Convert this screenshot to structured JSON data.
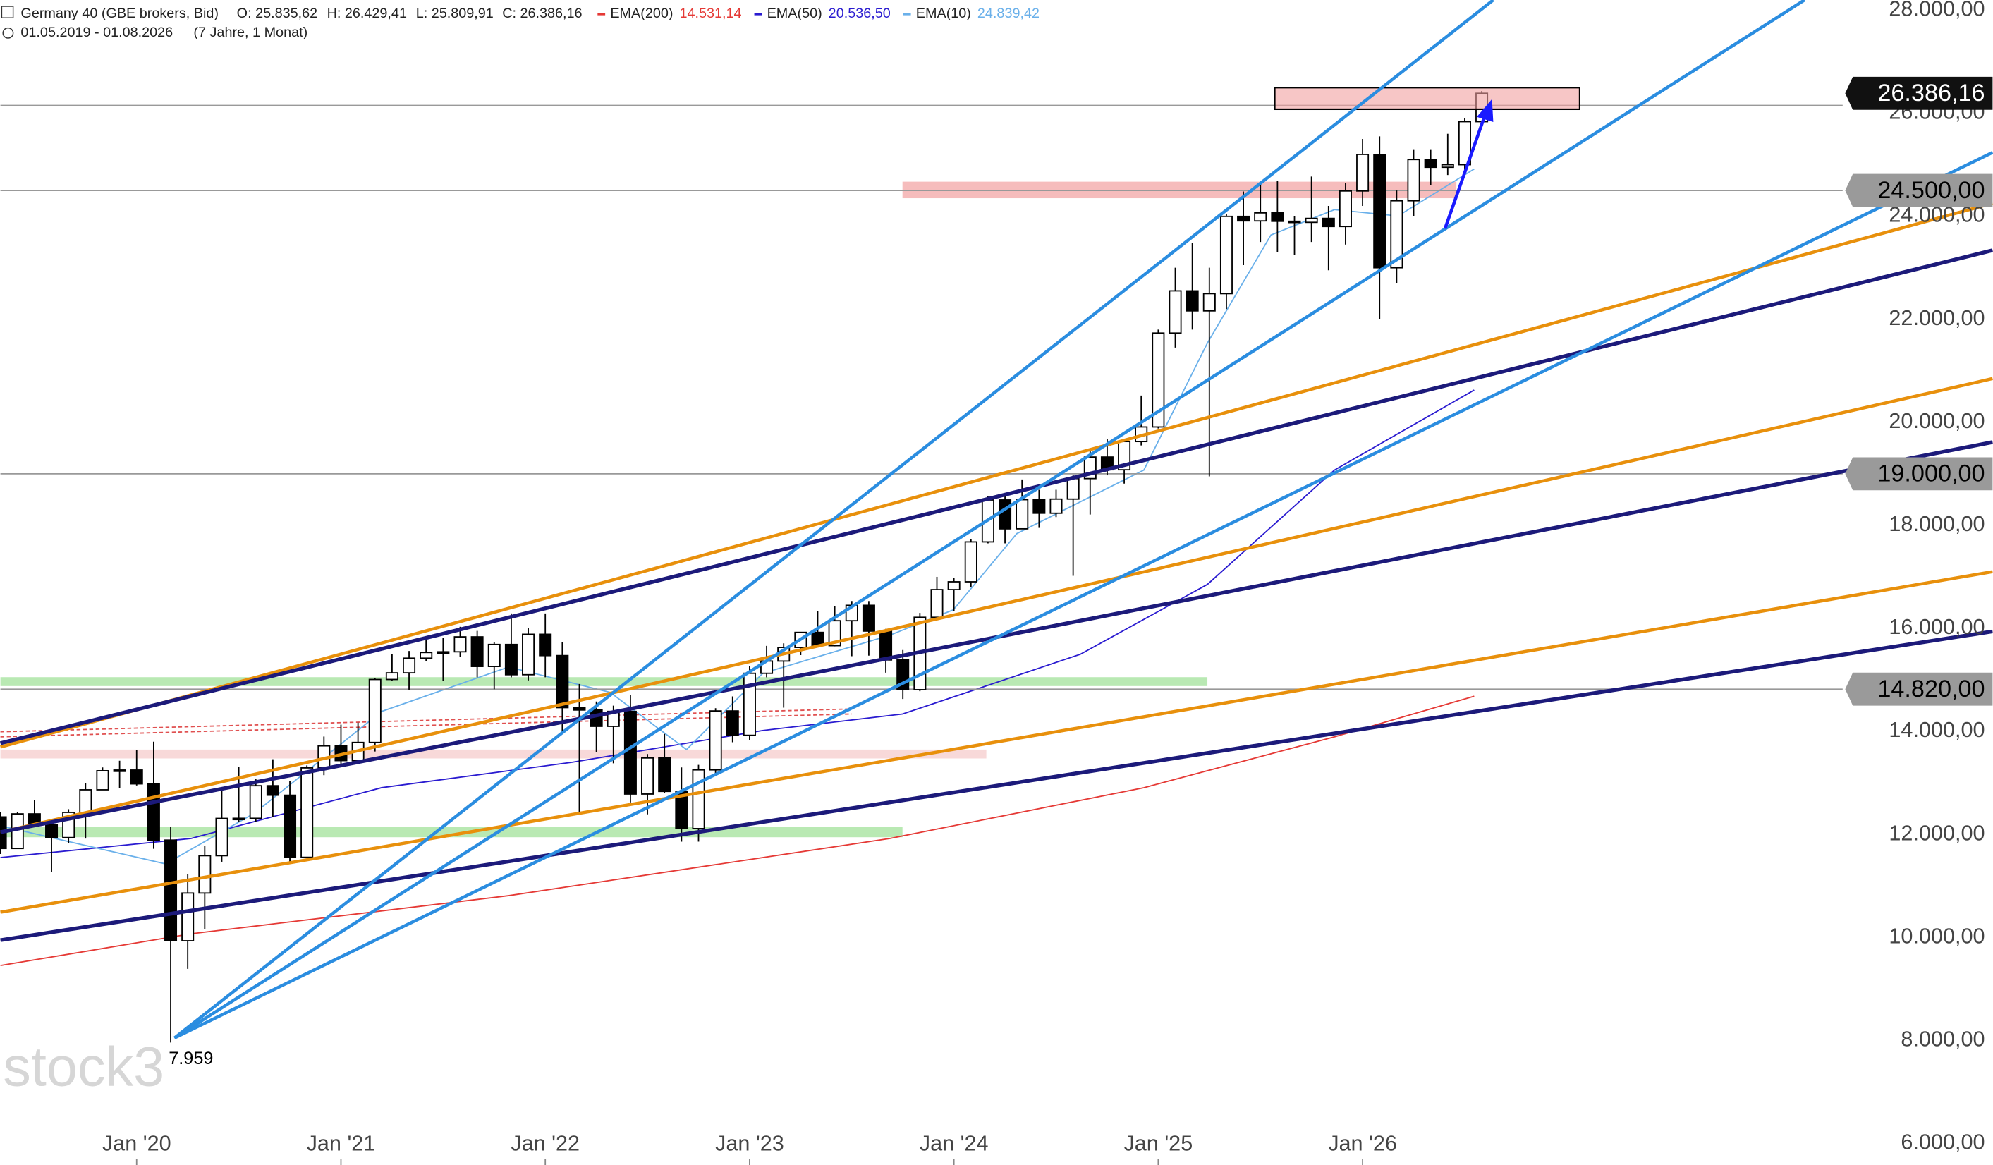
{
  "chart_data": {
    "type": "candlestick",
    "title": "Germany 40 (GBE brokers, Bid)",
    "info": {
      "open": "O: 25.835,62",
      "high": "H: 26.429,41",
      "low": "L: 25.809,91",
      "close": "C: 26.386,16"
    },
    "indicators": [
      {
        "name": "EMA(200)",
        "value_label": "14.531,14",
        "color": "#e53935"
      },
      {
        "name": "EMA(50)",
        "value_label": "20.536,50",
        "color": "#2a1bd0"
      },
      {
        "name": "EMA(10)",
        "value_label": "24.839,42",
        "color": "#6ab0ea"
      }
    ],
    "range_text": "01.05.2019 - 01.08.2026",
    "range_note": "(7 Jahre, 1 Monat)",
    "watermark": "stock3",
    "annotations": [
      {
        "text": "7.959"
      }
    ],
    "x": [
      "2019-05",
      "2019-06",
      "2019-07",
      "2019-08",
      "2019-09",
      "2019-10",
      "2019-11",
      "2019-12",
      "2020-01",
      "2020-02",
      "2020-03",
      "2020-04",
      "2020-05",
      "2020-06",
      "2020-07",
      "2020-08",
      "2020-09",
      "2020-10",
      "2020-11",
      "2020-12",
      "2021-01",
      "2021-02",
      "2021-03",
      "2021-04",
      "2021-05",
      "2021-06",
      "2021-07",
      "2021-08",
      "2021-09",
      "2021-10",
      "2021-11",
      "2021-12",
      "2022-01",
      "2022-02",
      "2022-03",
      "2022-04",
      "2022-05",
      "2022-06",
      "2022-07",
      "2022-08",
      "2022-09",
      "2022-10",
      "2022-11",
      "2022-12",
      "2023-01",
      "2023-02",
      "2023-03",
      "2023-04",
      "2023-05",
      "2023-06",
      "2023-07",
      "2023-08",
      "2023-09",
      "2023-10",
      "2023-11",
      "2023-12",
      "2024-01",
      "2024-02",
      "2024-03",
      "2024-04",
      "2024-05",
      "2024-06",
      "2024-07",
      "2024-08",
      "2024-09",
      "2024-10",
      "2024-11",
      "2024-12",
      "2025-01",
      "2025-02",
      "2025-03",
      "2025-04",
      "2025-05",
      "2025-06",
      "2025-07",
      "2025-08",
      "2025-09",
      "2025-10",
      "2025-11",
      "2025-12",
      "2026-01",
      "2026-02",
      "2026-03",
      "2026-04",
      "2026-05",
      "2026-06",
      "2026-07",
      "2026-08"
    ],
    "open": [
      12340,
      11727,
      12399,
      12189,
      11939,
      12428,
      12866,
      13236,
      13249,
      12981,
      11890,
      9936,
      10862,
      11587,
      12311,
      12313,
      12945,
      12761,
      11556,
      13291,
      13719,
      13433,
      13786,
      15008,
      15136,
      15421,
      15531,
      15544,
      15835,
      15260,
      15688,
      15100,
      15885,
      15471,
      14461,
      14415,
      14098,
      14388,
      12784,
      13484,
      12835,
      12114,
      13253,
      14397,
      13924,
      15128,
      15365,
      15629,
      15922,
      15664,
      16148,
      16447,
      15947,
      15387,
      14810,
      16215,
      16752,
      16904,
      17678,
      18492,
      17932,
      18498,
      18235,
      18509,
      18907,
      19325,
      19078,
      19626,
      19909,
      21732,
      22551,
      22163,
      22497,
      23997,
      23909,
      24065,
      23902,
      23881,
      23958,
      23800,
      24490,
      25200,
      23000,
      24300,
      25100,
      24950,
      25000,
      25835.62
    ],
    "high": [
      12440,
      12440,
      12660,
      12220,
      12490,
      12990,
      13300,
      13430,
      13640,
      13800,
      12140,
      11230,
      11780,
      12910,
      13310,
      13070,
      13460,
      13040,
      13340,
      13900,
      14130,
      14170,
      15040,
      15500,
      15560,
      15800,
      15810,
      16030,
      15950,
      15740,
      16290,
      16000,
      16290,
      15740,
      14920,
      14580,
      14500,
      14700,
      13560,
      13950,
      13300,
      13350,
      14450,
      14680,
      15270,
      15660,
      15710,
      15920,
      16330,
      16430,
      16530,
      16530,
      15990,
      15580,
      16300,
      17000,
      16980,
      17730,
      18570,
      18570,
      18890,
      18690,
      18690,
      18970,
      19490,
      19680,
      19680,
      20520,
      21800,
      23000,
      23480,
      23000,
      24050,
      24480,
      24640,
      24680,
      24000,
      24770,
      24200,
      24650,
      25500,
      25550,
      24500,
      25300,
      25300,
      25600,
      25900,
      26429.41
    ],
    "low": [
      11620,
      11730,
      12140,
      11270,
      11830,
      11920,
      12870,
      12900,
      12950,
      11720,
      7959,
      9390,
      10160,
      11470,
      12250,
      12250,
      12340,
      11450,
      11560,
      13150,
      13310,
      13430,
      13610,
      14980,
      14810,
      15370,
      14980,
      15450,
      15050,
      14820,
      15050,
      14990,
      15050,
      13950,
      12440,
      13600,
      13380,
      12620,
      12390,
      12800,
      11860,
      11860,
      13170,
      13790,
      13830,
      15050,
      14460,
      15480,
      15630,
      15650,
      15460,
      15470,
      15140,
      14630,
      14780,
      16160,
      16340,
      16800,
      17650,
      17650,
      17930,
      17950,
      18160,
      17020,
      18210,
      18970,
      18810,
      19550,
      19880,
      21450,
      21800,
      18950,
      22200,
      23050,
      23500,
      23310,
      23250,
      23500,
      22950,
      23450,
      24200,
      22000,
      22700,
      24000,
      24600,
      24800,
      24900,
      25809.91
    ],
    "close": [
      11727,
      12399,
      12189,
      11939,
      12428,
      12866,
      13236,
      13249,
      12981,
      11890,
      9936,
      10862,
      11587,
      12311,
      12313,
      12945,
      12761,
      11556,
      13291,
      13719,
      13433,
      13786,
      15008,
      15136,
      15421,
      15531,
      15544,
      15835,
      15260,
      15688,
      15100,
      15885,
      15471,
      14461,
      14415,
      14098,
      14388,
      12784,
      13484,
      12835,
      12114,
      13253,
      14397,
      13924,
      15128,
      15365,
      15629,
      15922,
      15664,
      16148,
      16447,
      15947,
      15387,
      14810,
      16215,
      16752,
      16904,
      17678,
      18492,
      17932,
      18498,
      18235,
      18509,
      18907,
      19325,
      19078,
      19626,
      19909,
      21732,
      22551,
      22163,
      22497,
      23997,
      23909,
      24065,
      23902,
      23881,
      23958,
      23800,
      24490,
      25200,
      23000,
      24300,
      25100,
      24950,
      25000,
      25835.62,
      26386.16
    ],
    "up_color": "#ffffff",
    "down_color": "#000000",
    "levels": [
      {
        "value": 26386.16,
        "label": "26.386,16",
        "current": true
      },
      {
        "value": 24500,
        "label": "24.500,00"
      },
      {
        "value": 19000,
        "label": "19.000,00"
      },
      {
        "value": 14820,
        "label": "14.820,00"
      }
    ],
    "xlim": [
      "2019-05",
      "2029-02"
    ],
    "xticks": [
      {
        "value": "2020-01",
        "label": "Jan '20"
      },
      {
        "value": "2021-01",
        "label": "Jan '21"
      },
      {
        "value": "2022-01",
        "label": "Jan '22"
      },
      {
        "value": "2023-01",
        "label": "Jan '23"
      },
      {
        "value": "2024-01",
        "label": "Jan '24"
      },
      {
        "value": "2025-01",
        "label": "Jan '25"
      },
      {
        "value": "2026-01",
        "label": "Jan '26"
      }
    ],
    "ylim": [
      5583,
      28197
    ],
    "yticks": [
      {
        "value": 6000,
        "label": "6.000,00"
      },
      {
        "value": 8000,
        "label": "8.000,00"
      },
      {
        "value": 10000,
        "label": "10.000,00"
      },
      {
        "value": 12000,
        "label": "12.000,00"
      },
      {
        "value": 14000,
        "label": "14.000,00"
      },
      {
        "value": 16000,
        "label": "16.000,00"
      },
      {
        "value": 18000,
        "label": "18.000,00"
      },
      {
        "value": 20000,
        "label": "20.000,00"
      },
      {
        "value": 22000,
        "label": "22.000,00"
      },
      {
        "value": 24000,
        "label": "24.000,00"
      },
      {
        "value": 26000,
        "label": "26.000,00"
      },
      {
        "value": 28000,
        "label": "28.000,00"
      }
    ],
    "grid": false
  }
}
